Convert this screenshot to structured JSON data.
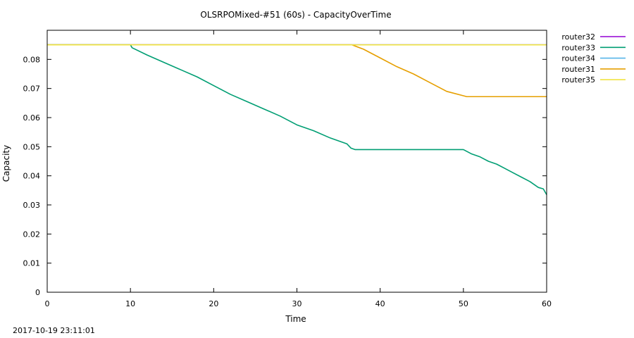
{
  "chart_data": {
    "type": "line",
    "title": "OLSRPOMixed-#51 (60s) - CapacityOverTime",
    "xlabel": "Time",
    "ylabel": "Capacity",
    "xlim": [
      0,
      60
    ],
    "ylim": [
      0,
      0.09
    ],
    "x_ticks": [
      "0",
      "10",
      "20",
      "30",
      "40",
      "50",
      "60"
    ],
    "y_ticks": [
      "0",
      "0.01",
      "0.02",
      "0.03",
      "0.04",
      "0.05",
      "0.06",
      "0.07",
      "0.08"
    ],
    "grid": false,
    "legend_position": "top-right-outside",
    "series": [
      {
        "name": "router32",
        "color": "#9400d3",
        "points": [
          [
            0,
            0.085
          ],
          [
            60,
            0.085
          ]
        ]
      },
      {
        "name": "router33",
        "color": "#009e73",
        "points": [
          [
            0,
            0.085
          ],
          [
            10,
            0.085
          ],
          [
            10.2,
            0.084
          ],
          [
            12,
            0.0815
          ],
          [
            14,
            0.079
          ],
          [
            16,
            0.0765
          ],
          [
            18,
            0.074
          ],
          [
            20,
            0.071
          ],
          [
            22,
            0.068
          ],
          [
            24,
            0.0655
          ],
          [
            26,
            0.063
          ],
          [
            28,
            0.0605
          ],
          [
            30,
            0.0575
          ],
          [
            32,
            0.0555
          ],
          [
            34,
            0.053
          ],
          [
            36,
            0.051
          ],
          [
            36.5,
            0.0495
          ],
          [
            37,
            0.049
          ],
          [
            49,
            0.049
          ],
          [
            50,
            0.049
          ],
          [
            51,
            0.0475
          ],
          [
            52,
            0.0465
          ],
          [
            53,
            0.045
          ],
          [
            54,
            0.044
          ],
          [
            55,
            0.0425
          ],
          [
            56,
            0.041
          ],
          [
            57,
            0.0395
          ],
          [
            58,
            0.038
          ],
          [
            59,
            0.036
          ],
          [
            59.6,
            0.0355
          ],
          [
            60,
            0.0335
          ]
        ]
      },
      {
        "name": "router34",
        "color": "#56b4e9",
        "points": [
          [
            0,
            0.085
          ],
          [
            60,
            0.085
          ]
        ]
      },
      {
        "name": "router31",
        "color": "#e69f00",
        "points": [
          [
            0,
            0.085
          ],
          [
            36.6,
            0.085
          ],
          [
            38,
            0.0835
          ],
          [
            40,
            0.0805
          ],
          [
            42,
            0.0775
          ],
          [
            44,
            0.075
          ],
          [
            46,
            0.072
          ],
          [
            48,
            0.069
          ],
          [
            50,
            0.0675
          ],
          [
            50.4,
            0.0672
          ],
          [
            60,
            0.0672
          ]
        ]
      },
      {
        "name": "router35",
        "color": "#f0e442",
        "points": [
          [
            0,
            0.085
          ],
          [
            60,
            0.085
          ]
        ]
      }
    ]
  },
  "footer": {
    "timestamp": "2017-10-19 23:11:01"
  }
}
